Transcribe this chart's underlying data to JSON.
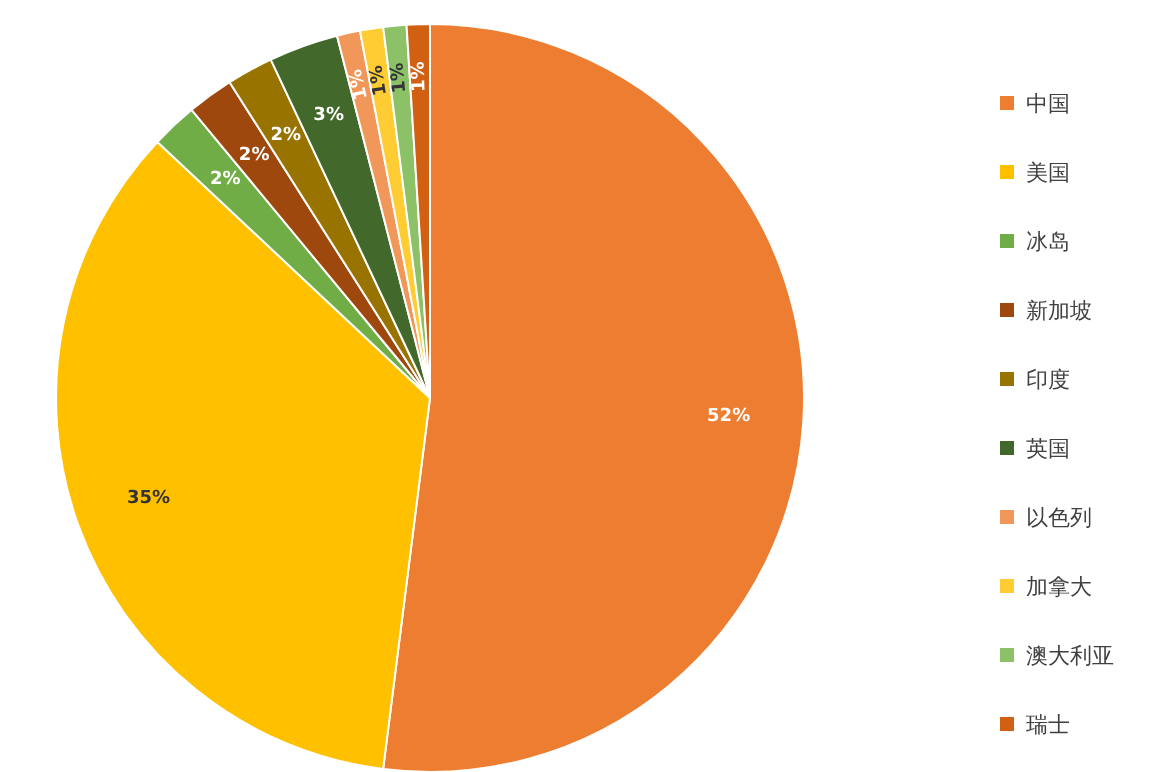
{
  "chart_data": {
    "type": "pie",
    "categories": [
      "中国",
      "美国",
      "冰岛",
      "新加坡",
      "印度",
      "英国",
      "以色列",
      "加拿大",
      "澳大利亚",
      "瑞士"
    ],
    "values": [
      52,
      35,
      2,
      2,
      2,
      3,
      1,
      1,
      1,
      1
    ],
    "colors": [
      "#ed7d31",
      "#ffc000",
      "#70ad47",
      "#9e480e",
      "#997300",
      "#43682b",
      "#f1975a",
      "#ffcd33",
      "#8cc168",
      "#d26012"
    ],
    "value_labels": [
      "52%",
      "35%",
      "2%",
      "2%",
      "2%",
      "3%",
      "1%",
      "1%",
      "1%",
      "1%"
    ],
    "legend": "right"
  }
}
